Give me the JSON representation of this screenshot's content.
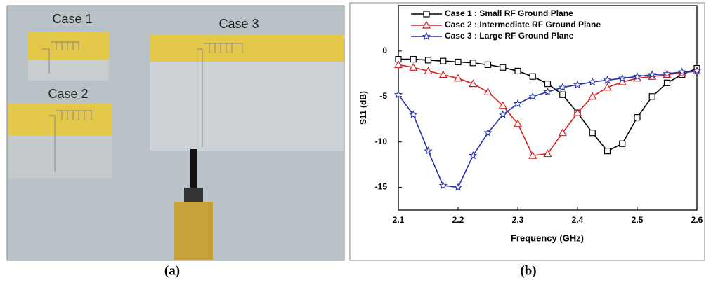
{
  "photo": {
    "labels": [
      "Case 1",
      "Case 2",
      "Case 3"
    ]
  },
  "captions": [
    "(a)",
    "(b)"
  ],
  "chart_data": {
    "type": "line",
    "xlabel": "Frequency (GHz)",
    "ylabel": "S11 (dB)",
    "x": [
      2.1,
      2.125,
      2.15,
      2.175,
      2.2,
      2.225,
      2.25,
      2.275,
      2.3,
      2.325,
      2.35,
      2.375,
      2.4,
      2.425,
      2.45,
      2.475,
      2.5,
      2.525,
      2.55,
      2.575,
      2.6
    ],
    "series": [
      {
        "name": "Case 1 : Small RF Ground Plane",
        "color": "#000000",
        "marker": "square",
        "values": [
          -0.9,
          -0.9,
          -1,
          -1.1,
          -1.2,
          -1.3,
          -1.5,
          -1.8,
          -2.2,
          -2.8,
          -3.6,
          -4.8,
          -6.8,
          -9,
          -11,
          -10.2,
          -7.3,
          -5,
          -3.5,
          -2.6,
          -1.9
        ]
      },
      {
        "name": "Case 2 : Intermediate RF Ground Plane",
        "color": "#d42020",
        "marker": "triangle",
        "values": [
          -1.5,
          -1.8,
          -2.2,
          -2.6,
          -3,
          -3.6,
          -4.5,
          -6,
          -8,
          -11.5,
          -11.3,
          -9,
          -6.8,
          -5,
          -4,
          -3.4,
          -3,
          -2.8,
          -2.6,
          -2.4,
          -2.2
        ]
      },
      {
        "name": "Case 3 : Large RF Ground Plane",
        "color": "#1f2fb0",
        "marker": "star",
        "values": [
          -4.8,
          -7,
          -11,
          -14.8,
          -15,
          -11.5,
          -9,
          -7,
          -5.8,
          -5,
          -4.5,
          -4,
          -3.7,
          -3.4,
          -3.2,
          -3,
          -2.8,
          -2.6,
          -2.5,
          -2.3,
          -2.2
        ]
      }
    ],
    "xlim": [
      2.1,
      2.6
    ],
    "xticks": [
      2.1,
      2.2,
      2.3,
      2.4,
      2.5,
      2.6
    ],
    "ylim": [
      -17.5,
      5
    ],
    "yticks": [
      0,
      -5,
      -10,
      -15
    ],
    "legend": "upper left"
  }
}
